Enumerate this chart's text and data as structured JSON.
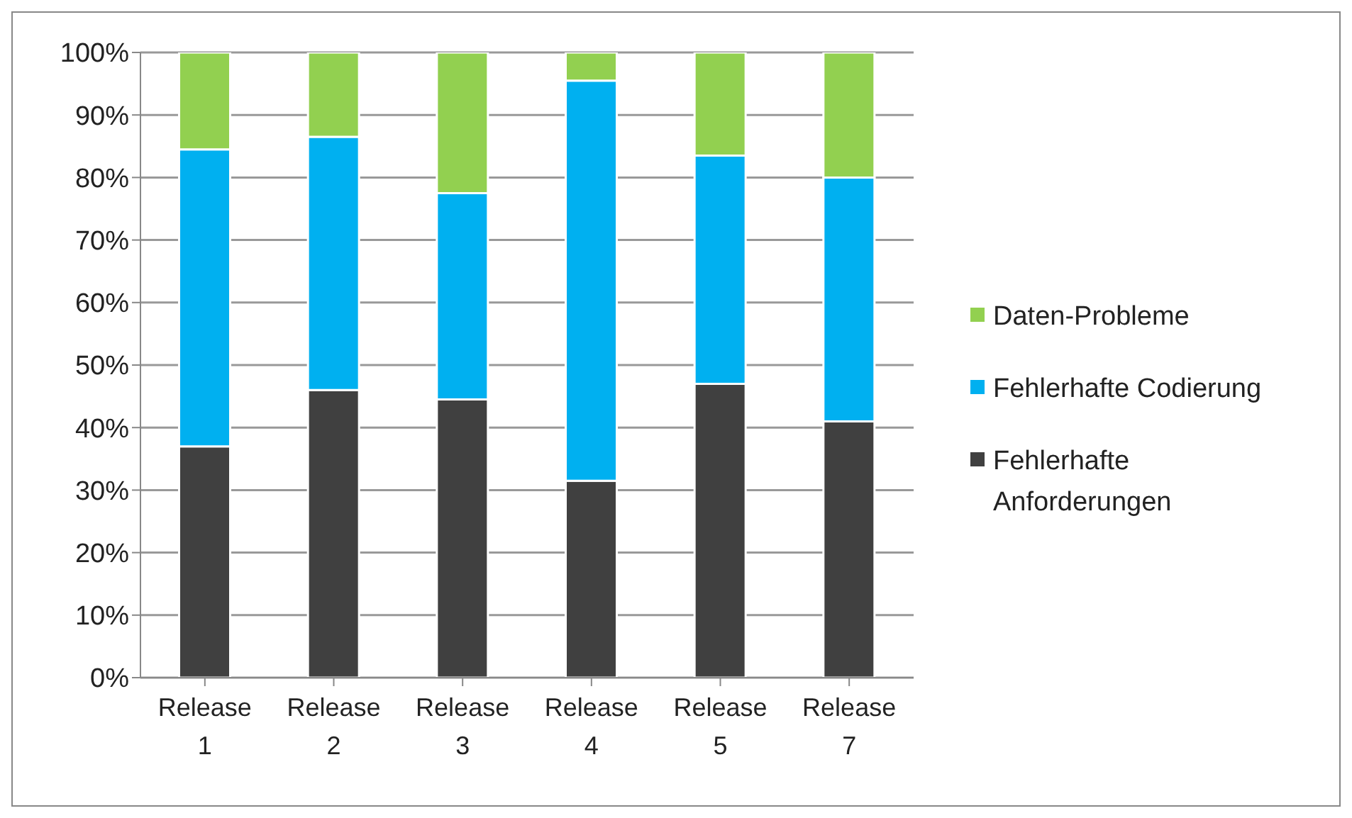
{
  "chart_data": {
    "type": "bar",
    "stacked": true,
    "categories": [
      "Release 1",
      "Release 2",
      "Release 3",
      "Release 4",
      "Release 5",
      "Release 7"
    ],
    "series": [
      {
        "name": "Fehlerhafte Anforderungen",
        "color": "#404040",
        "values": [
          37,
          46,
          44.5,
          31.5,
          47,
          41
        ]
      },
      {
        "name": "Fehlerhafte Codierung",
        "color": "#00b0f0",
        "values": [
          47.5,
          40.5,
          33,
          64,
          36.5,
          39
        ]
      },
      {
        "name": "Daten-Probleme",
        "color": "#92d050",
        "values": [
          15.5,
          13.5,
          22.5,
          4.5,
          16.5,
          20
        ]
      }
    ],
    "ylim": [
      0,
      100
    ],
    "yticks": [
      {
        "value": 0,
        "label": "0%"
      },
      {
        "value": 10,
        "label": "10%"
      },
      {
        "value": 20,
        "label": "20%"
      },
      {
        "value": 30,
        "label": "30%"
      },
      {
        "value": 40,
        "label": "40%"
      },
      {
        "value": 50,
        "label": "50%"
      },
      {
        "value": 60,
        "label": "60%"
      },
      {
        "value": 70,
        "label": "70%"
      },
      {
        "value": 80,
        "label": "80%"
      },
      {
        "value": 90,
        "label": "90%"
      },
      {
        "value": 100,
        "label": "100%"
      }
    ],
    "grid": "y",
    "legend": "right"
  }
}
